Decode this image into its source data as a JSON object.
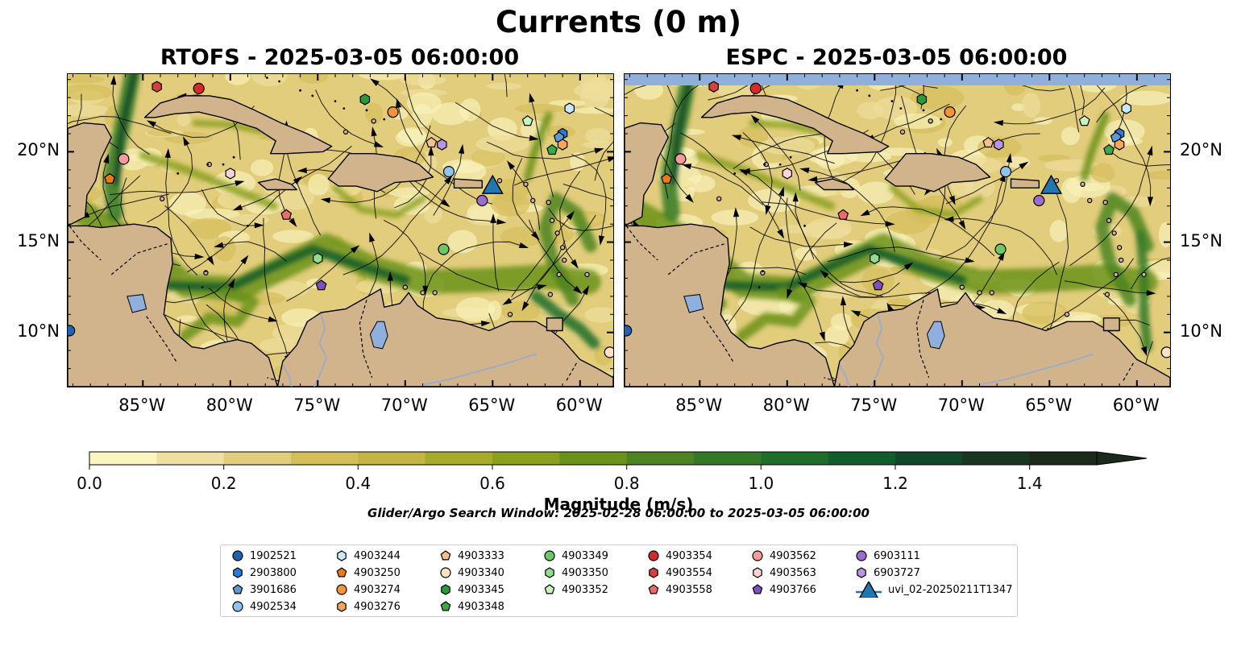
{
  "figure": {
    "title": "Currents (0 m)",
    "search_window": "Glider/Argo Search Window: 2025-02-28 06:00:00 to 2025-03-05 06:00:00"
  },
  "panels": [
    {
      "title": "RTOFS - 2025-03-05 06:00:00"
    },
    {
      "title": "ESPC - 2025-03-05 06:00:00"
    }
  ],
  "map": {
    "lon_range": [
      -89.3,
      -58.1
    ],
    "lat_range": [
      7.0,
      24.3
    ],
    "lon_ticks": [
      {
        "value": -85,
        "label": "85°W"
      },
      {
        "value": -80,
        "label": "80°W"
      },
      {
        "value": -75,
        "label": "75°W"
      },
      {
        "value": -70,
        "label": "70°W"
      },
      {
        "value": -65,
        "label": "65°W"
      },
      {
        "value": -60,
        "label": "60°W"
      }
    ],
    "lat_ticks": [
      {
        "value": 20,
        "label": "20°N"
      },
      {
        "value": 15,
        "label": "15°N"
      },
      {
        "value": 10,
        "label": "10°N"
      }
    ],
    "colors": {
      "land": "#d2b48c",
      "lakes": "#8fb0dc",
      "rivers": "#9aacc8",
      "no_data": "#8fb0dc"
    }
  },
  "colorbar": {
    "label": "Magnitude (m/s)",
    "min": 0.0,
    "max": 1.5,
    "extend": "max",
    "ticks": [
      "0.0",
      "0.2",
      "0.4",
      "0.6",
      "0.8",
      "1.0",
      "1.2",
      "1.4"
    ],
    "colors": [
      "#fbf5c0",
      "#efe0a0",
      "#e2cd7c",
      "#d4be5a",
      "#c4b345",
      "#a8aa2c",
      "#8aa01e",
      "#6b921a",
      "#4e8420",
      "#347a26",
      "#1e6e2a",
      "#0f5e2c",
      "#11472a",
      "#173624",
      "#1b2a1c"
    ]
  },
  "platforms": [
    {
      "id": "1902521",
      "marker": "circle",
      "color": "#1f63b4",
      "rtofs": [
        -89.2,
        10.1
      ],
      "espc": [
        -89.2,
        10.1
      ]
    },
    {
      "id": "2903800",
      "marker": "hexagon",
      "color": "#2a7ad8",
      "rtofs": [
        -61.0,
        21.0
      ],
      "espc": [
        -61.0,
        21.0
      ]
    },
    {
      "id": "3901686",
      "marker": "pentagon",
      "color": "#5b9bd5",
      "rtofs": [
        -61.2,
        20.8
      ],
      "espc": [
        -61.2,
        20.8
      ]
    },
    {
      "id": "4902534",
      "marker": "circle",
      "color": "#8ec4ee",
      "rtofs": [
        -67.5,
        18.9
      ],
      "espc": [
        -67.5,
        18.9
      ]
    },
    {
      "id": "4903244",
      "marker": "hexagon",
      "color": "#c8e8ff",
      "rtofs": [
        -60.6,
        22.4
      ],
      "espc": [
        -60.6,
        22.4
      ]
    },
    {
      "id": "4903250",
      "marker": "pentagon",
      "color": "#f07a10",
      "rtofs": [
        -86.9,
        18.5
      ],
      "espc": [
        -86.9,
        18.5
      ]
    },
    {
      "id": "4903274",
      "marker": "circle",
      "color": "#f4923a",
      "rtofs": [
        -70.7,
        22.2
      ],
      "espc": [
        -70.7,
        22.2
      ]
    },
    {
      "id": "4903276",
      "marker": "hexagon",
      "color": "#f6a65c",
      "rtofs": [
        -61.0,
        20.4
      ],
      "espc": [
        -61.0,
        20.4
      ]
    },
    {
      "id": "4903333",
      "marker": "pentagon",
      "color": "#f7bf8c",
      "rtofs": [
        -68.5,
        20.5
      ],
      "espc": [
        -68.5,
        20.5
      ]
    },
    {
      "id": "4903340",
      "marker": "circle",
      "color": "#fde2c8",
      "rtofs": [
        -58.3,
        8.9
      ],
      "espc": [
        -58.3,
        8.9
      ]
    },
    {
      "id": "4903345",
      "marker": "hexagon",
      "color": "#2c9a38",
      "rtofs": [
        -72.3,
        22.9
      ],
      "espc": [
        -72.3,
        22.9
      ]
    },
    {
      "id": "4903348",
      "marker": "pentagon",
      "color": "#3da844",
      "rtofs": [
        -61.6,
        20.1
      ],
      "espc": [
        -61.6,
        20.1
      ]
    },
    {
      "id": "4903349",
      "marker": "circle",
      "color": "#6cc864",
      "rtofs": [
        -67.8,
        14.6
      ],
      "espc": [
        -67.8,
        14.6
      ]
    },
    {
      "id": "4903350",
      "marker": "hexagon",
      "color": "#90de8c",
      "rtofs": [
        -75.0,
        14.1
      ],
      "espc": [
        -75.0,
        14.1
      ]
    },
    {
      "id": "4903352",
      "marker": "pentagon",
      "color": "#c8f4c0",
      "rtofs": [
        -63.0,
        21.7
      ],
      "espc": [
        -63.0,
        21.7
      ]
    },
    {
      "id": "4903354",
      "marker": "circle",
      "color": "#d42b27",
      "rtofs": [
        -81.8,
        23.5
      ],
      "espc": [
        -81.8,
        23.5
      ]
    },
    {
      "id": "4903554",
      "marker": "hexagon",
      "color": "#d8403c",
      "rtofs": [
        -84.2,
        23.6
      ],
      "espc": [
        -84.2,
        23.6
      ]
    },
    {
      "id": "4903558",
      "marker": "pentagon",
      "color": "#ec6b6b",
      "rtofs": [
        -76.8,
        16.5
      ],
      "espc": [
        -76.8,
        16.5
      ]
    },
    {
      "id": "4903562",
      "marker": "circle",
      "color": "#f49c9c",
      "rtofs": [
        -86.1,
        19.6
      ],
      "espc": [
        -86.1,
        19.6
      ]
    },
    {
      "id": "4903563",
      "marker": "hexagon",
      "color": "#fcd4d4",
      "rtofs": [
        -80.0,
        18.8
      ],
      "espc": [
        -80.0,
        18.8
      ]
    },
    {
      "id": "4903766",
      "marker": "pentagon",
      "color": "#7e4fbe",
      "rtofs": [
        -74.8,
        12.6
      ],
      "espc": [
        -74.8,
        12.6
      ]
    },
    {
      "id": "6903111",
      "marker": "circle",
      "color": "#9a6ccb",
      "rtofs": [
        -65.6,
        17.3
      ],
      "espc": [
        -65.6,
        17.3
      ]
    },
    {
      "id": "6903727",
      "marker": "hexagon",
      "color": "#b895e0",
      "rtofs": [
        -67.9,
        20.4
      ],
      "espc": [
        -67.9,
        20.4
      ]
    },
    {
      "id": "uvi_02-20250211T1347",
      "marker": "triangle",
      "color": "#1f77b4",
      "rtofs": [
        -65.0,
        18.1
      ],
      "espc": [
        -64.9,
        18.1
      ]
    }
  ]
}
